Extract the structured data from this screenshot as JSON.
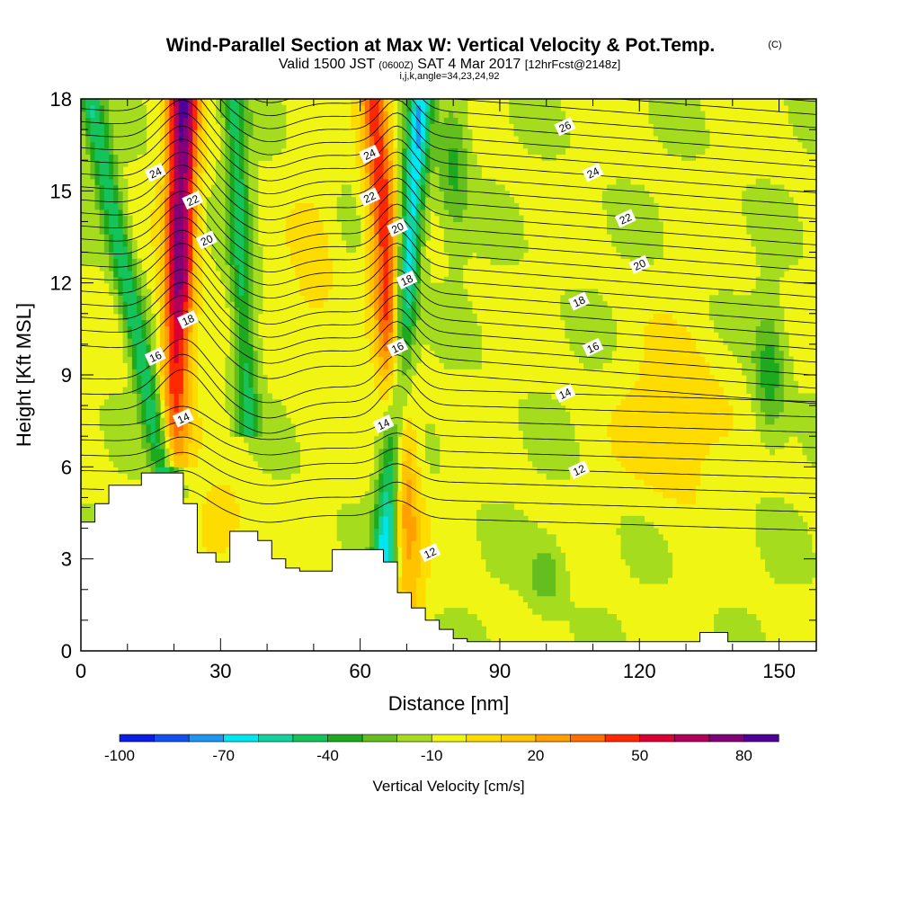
{
  "header": {
    "title": "Wind-Parallel Section at Max W: Vertical Velocity & Pot.Temp.",
    "title_mark": "(C)",
    "valid_prefix": "Valid 1500 JST",
    "valid_zulu": "(0600Z)",
    "valid_date": "SAT 4 Mar 2017",
    "forecast_tag": "[12hrFcst@2148z]",
    "indices": "i,j,k,angle=34,23,24,92"
  },
  "chart_data": {
    "type": "heatmap",
    "xlabel": "Distance [nm]",
    "ylabel": "Height [Kft MSL]",
    "xlim": [
      0,
      158
    ],
    "ylim": [
      0,
      18
    ],
    "x_ticks": [
      0,
      30,
      60,
      90,
      120,
      150
    ],
    "y_ticks": [
      0,
      3,
      6,
      9,
      12,
      15,
      18
    ],
    "colorbar": {
      "label": "Vertical Velocity [cm/s]",
      "tick_labels": [
        "-100",
        "-70",
        "-40",
        "-10",
        "20",
        "50",
        "80"
      ],
      "tick_values": [
        -100,
        -70,
        -40,
        -10,
        20,
        50,
        80
      ],
      "range": [
        -100,
        90
      ],
      "step": 10,
      "colors": [
        "#0a1ee6",
        "#1450f0",
        "#1e96f0",
        "#00e6f0",
        "#14d2a0",
        "#14c35a",
        "#1eaa1e",
        "#64be1e",
        "#a5dc1e",
        "#f0f514",
        "#ffdc00",
        "#ffc300",
        "#ffa000",
        "#ff6e00",
        "#ff2800",
        "#dc0032",
        "#b4005a",
        "#820078",
        "#500096"
      ]
    },
    "updraft_bands": [
      {
        "x_bottom": 20,
        "x_top": 22,
        "z_bottom": 6,
        "peak_value": 85
      },
      {
        "x_bottom": 71,
        "x_top": 63,
        "z_bottom": 1.5,
        "peak_value": 55
      }
    ],
    "downdraft_bands": [
      {
        "x_bottom": 19,
        "x_top": 2,
        "z_bottom": 5,
        "peak_value": -40
      },
      {
        "x_bottom": 65,
        "x_top": 73,
        "z_bottom": 2.5,
        "peak_value": -60
      },
      {
        "x_bottom": 36,
        "x_top": 33,
        "z_bottom": 7,
        "peak_value": -35
      }
    ],
    "terrain": {
      "x": [
        0,
        3,
        3,
        6,
        6,
        13,
        13,
        22,
        22,
        25,
        25,
        29,
        29,
        32,
        32,
        38,
        38,
        41,
        41,
        44,
        44,
        47,
        47,
        54,
        54,
        60,
        60,
        65,
        65,
        68,
        68,
        71,
        71,
        74,
        74,
        77,
        77,
        80,
        80,
        83,
        83,
        133,
        133,
        139,
        139,
        158
      ],
      "z": [
        4.2,
        4.2,
        4.8,
        4.8,
        5.4,
        5.4,
        5.8,
        5.8,
        4.8,
        4.8,
        3.2,
        3.2,
        2.9,
        2.9,
        3.9,
        3.9,
        3.6,
        3.6,
        3.0,
        3.0,
        2.7,
        2.7,
        2.6,
        2.6,
        3.3,
        3.3,
        3.3,
        3.3,
        2.9,
        2.9,
        1.9,
        1.9,
        1.4,
        1.4,
        1.0,
        1.0,
        0.7,
        0.7,
        0.4,
        0.4,
        0.3,
        0.3,
        0.6,
        0.6,
        0.3,
        0.3
      ]
    },
    "theta_contours": {
      "levels": [
        12,
        14,
        16,
        18,
        20,
        22,
        24,
        26
      ],
      "interval": 0.5,
      "labels": [
        {
          "text": "24",
          "x": 16,
          "z": 15.6
        },
        {
          "text": "22",
          "x": 24,
          "z": 14.7
        },
        {
          "text": "20",
          "x": 27,
          "z": 13.4
        },
        {
          "text": "18",
          "x": 23,
          "z": 10.8
        },
        {
          "text": "16",
          "x": 16,
          "z": 9.6
        },
        {
          "text": "14",
          "x": 22,
          "z": 7.6
        },
        {
          "text": "24",
          "x": 62,
          "z": 16.2
        },
        {
          "text": "22",
          "x": 62,
          "z": 14.8
        },
        {
          "text": "20",
          "x": 68,
          "z": 13.8
        },
        {
          "text": "18",
          "x": 70,
          "z": 12.1
        },
        {
          "text": "16",
          "x": 68,
          "z": 9.9
        },
        {
          "text": "14",
          "x": 65,
          "z": 7.4
        },
        {
          "text": "12",
          "x": 75,
          "z": 3.2
        },
        {
          "text": "26",
          "x": 104,
          "z": 17.1
        },
        {
          "text": "24",
          "x": 110,
          "z": 15.6
        },
        {
          "text": "22",
          "x": 117,
          "z": 14.1
        },
        {
          "text": "20",
          "x": 120,
          "z": 12.6
        },
        {
          "text": "18",
          "x": 107,
          "z": 11.4
        },
        {
          "text": "16",
          "x": 110,
          "z": 9.9
        },
        {
          "text": "14",
          "x": 104,
          "z": 8.4
        },
        {
          "text": "12",
          "x": 107,
          "z": 5.9
        }
      ]
    }
  }
}
